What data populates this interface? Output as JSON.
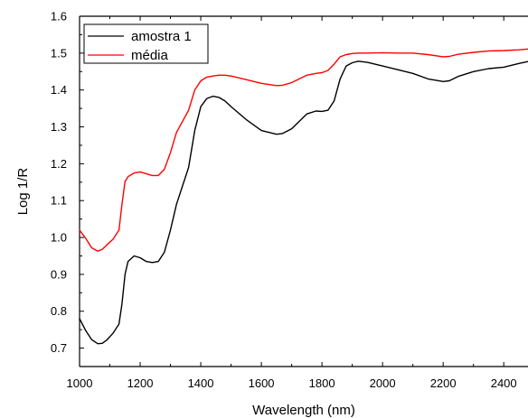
{
  "chart_data": {
    "type": "line",
    "xlabel": "Wavelength (nm)",
    "ylabel": "Log 1/R",
    "xlim": [
      1000,
      2480
    ],
    "ylim": [
      0.65,
      1.6
    ],
    "x_ticks": [
      1000,
      1200,
      1400,
      1600,
      1800,
      2000,
      2200,
      2400
    ],
    "x_tick_labels": [
      "1000",
      "1200",
      "1400",
      "1600",
      "1800",
      "2000",
      "2200",
      "2400"
    ],
    "y_ticks": [
      0.7,
      0.8,
      0.9,
      1.0,
      1.1,
      1.2,
      1.3,
      1.4,
      1.5,
      1.6
    ],
    "y_tick_labels": [
      "0.7",
      "0.8",
      "0.9",
      "1.0",
      "1.1",
      "1.2",
      "1.3",
      "1.4",
      "1.5",
      "1.6"
    ],
    "grid": false,
    "legend_position": "top-left",
    "series": [
      {
        "name": "amostra 1",
        "color": "#000000",
        "x": [
          1000,
          1020,
          1040,
          1060,
          1075,
          1090,
          1110,
          1130,
          1140,
          1150,
          1160,
          1180,
          1200,
          1220,
          1240,
          1260,
          1280,
          1300,
          1320,
          1340,
          1360,
          1380,
          1400,
          1420,
          1440,
          1460,
          1480,
          1500,
          1550,
          1600,
          1650,
          1670,
          1700,
          1750,
          1780,
          1800,
          1820,
          1840,
          1860,
          1880,
          1900,
          1920,
          1950,
          2000,
          2050,
          2100,
          2150,
          2200,
          2220,
          2250,
          2300,
          2350,
          2400,
          2450,
          2480
        ],
        "y": [
          0.78,
          0.748,
          0.723,
          0.712,
          0.713,
          0.722,
          0.74,
          0.765,
          0.82,
          0.9,
          0.935,
          0.95,
          0.945,
          0.935,
          0.932,
          0.935,
          0.96,
          1.02,
          1.09,
          1.14,
          1.19,
          1.29,
          1.355,
          1.377,
          1.383,
          1.38,
          1.37,
          1.355,
          1.32,
          1.29,
          1.28,
          1.282,
          1.295,
          1.335,
          1.343,
          1.342,
          1.345,
          1.37,
          1.43,
          1.465,
          1.474,
          1.478,
          1.475,
          1.465,
          1.455,
          1.445,
          1.43,
          1.423,
          1.425,
          1.437,
          1.45,
          1.458,
          1.462,
          1.472,
          1.477
        ]
      },
      {
        "name": "média",
        "color": "#ff0000",
        "x": [
          1000,
          1020,
          1040,
          1060,
          1075,
          1090,
          1110,
          1130,
          1140,
          1150,
          1160,
          1180,
          1200,
          1220,
          1240,
          1260,
          1280,
          1300,
          1320,
          1340,
          1360,
          1380,
          1400,
          1420,
          1440,
          1460,
          1480,
          1500,
          1550,
          1600,
          1650,
          1670,
          1700,
          1750,
          1780,
          1800,
          1820,
          1840,
          1860,
          1880,
          1900,
          1920,
          1950,
          2000,
          2050,
          2100,
          2150,
          2200,
          2220,
          2250,
          2300,
          2350,
          2400,
          2450,
          2480
        ],
        "y": [
          1.02,
          0.998,
          0.972,
          0.963,
          0.968,
          0.98,
          0.995,
          1.02,
          1.09,
          1.152,
          1.165,
          1.175,
          1.178,
          1.173,
          1.168,
          1.168,
          1.185,
          1.23,
          1.285,
          1.315,
          1.345,
          1.4,
          1.425,
          1.435,
          1.438,
          1.44,
          1.44,
          1.438,
          1.428,
          1.418,
          1.412,
          1.413,
          1.42,
          1.44,
          1.445,
          1.447,
          1.453,
          1.47,
          1.49,
          1.496,
          1.499,
          1.5,
          1.5,
          1.501,
          1.5,
          1.5,
          1.496,
          1.49,
          1.491,
          1.497,
          1.502,
          1.506,
          1.507,
          1.509,
          1.511
        ]
      }
    ]
  }
}
